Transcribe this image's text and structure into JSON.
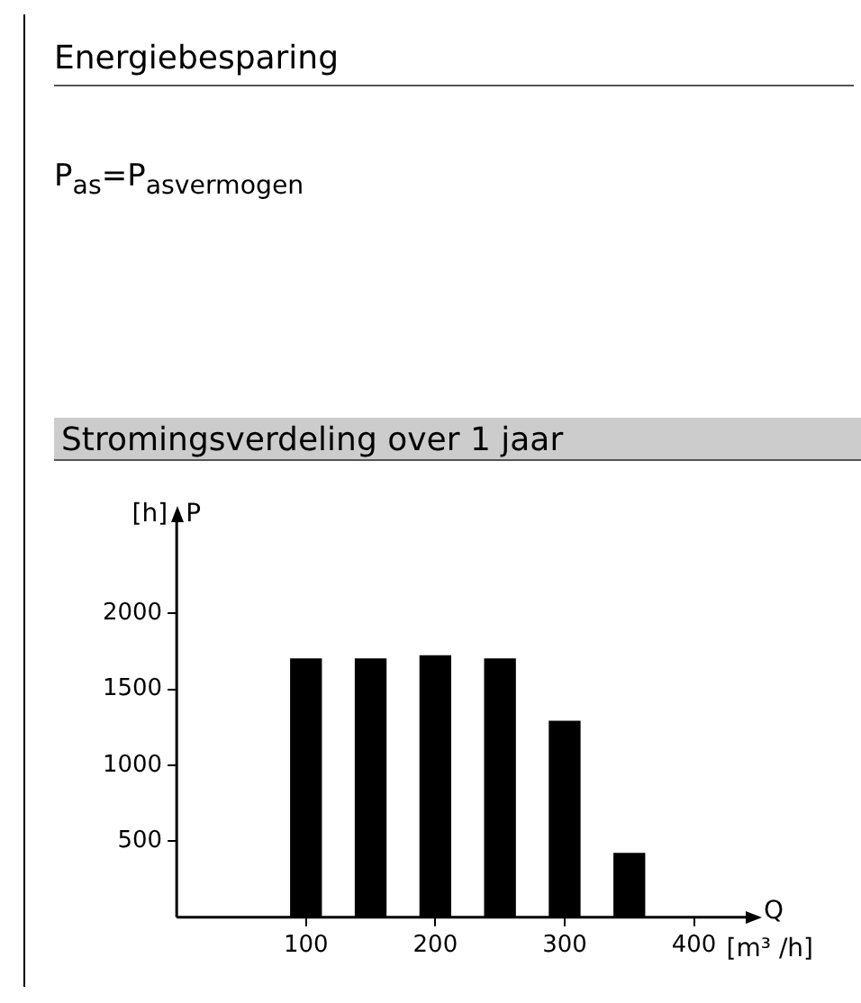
{
  "chart_data": {
    "type": "bar",
    "title": "Energiebesparing",
    "subtitle": "Stromingsverdeling over 1 jaar",
    "annotations": [
      "P$_{as}$=P$_{asvermogen}$",
      "P",
      "Q"
    ],
    "xlabel": "[m³ /h]",
    "ylabel": "[h]",
    "x": [
      100,
      150,
      200,
      250,
      300,
      350
    ],
    "values": [
      1700,
      1700,
      1720,
      1700,
      1290,
      420
    ],
    "color": "#000000",
    "xlim": [
      0,
      440
    ],
    "xticks": [
      100,
      200,
      300,
      400
    ],
    "ylim": [
      0,
      2600
    ],
    "yticks": [
      500,
      1000,
      1500,
      2000
    ],
    "grid": false,
    "legend": false
  }
}
